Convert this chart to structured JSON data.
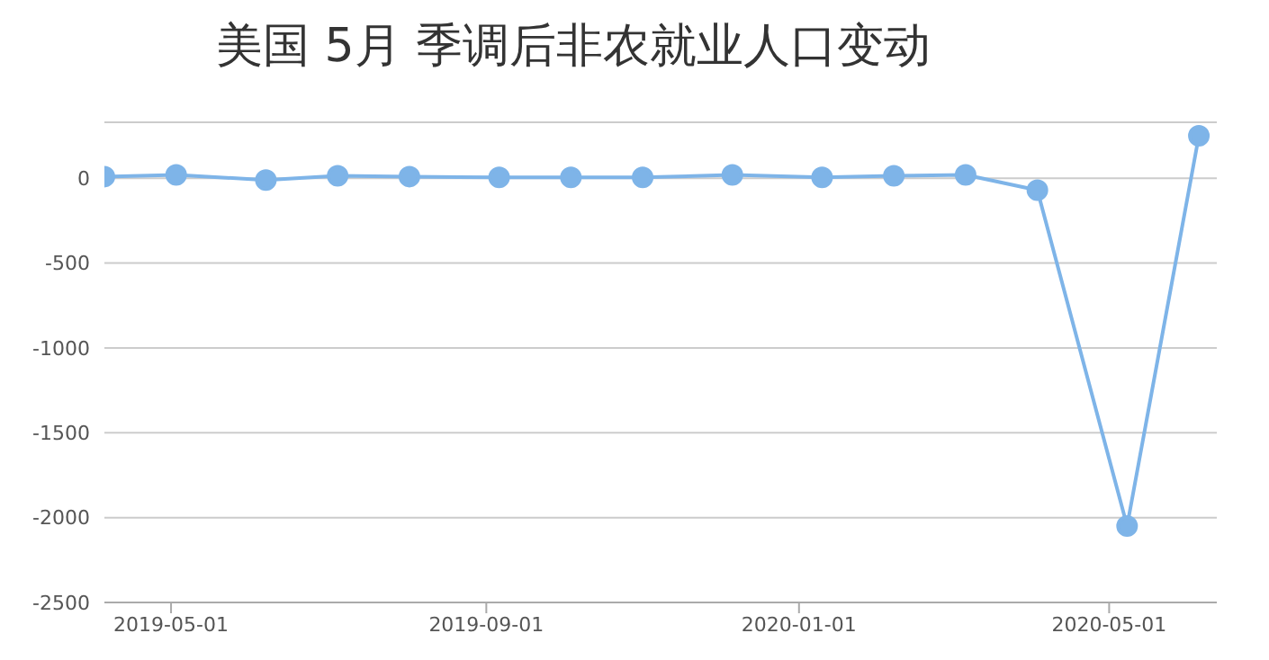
{
  "chart_data": {
    "type": "line",
    "title": "美国 5月 季调后非农就业人口变动",
    "x": [
      "2019-04-05",
      "2019-05-03",
      "2019-06-07",
      "2019-07-05",
      "2019-08-02",
      "2019-09-06",
      "2019-10-04",
      "2019-11-01",
      "2019-12-06",
      "2020-01-10",
      "2020-02-07",
      "2020-03-06",
      "2020-04-03",
      "2020-05-08",
      "2020-06-05"
    ],
    "series": [
      {
        "color": "#7eb4e8",
        "values": [
          10,
          20,
          -10,
          15,
          10,
          5,
          5,
          5,
          20,
          5,
          15,
          20,
          -70,
          -2050,
          250
        ]
      }
    ],
    "xlim": [
      "2019-04-05",
      "2020-06-12"
    ],
    "xticks": [
      {
        "value": "2019-05-01",
        "label": "2019-05-01"
      },
      {
        "value": "2019-09-01",
        "label": "2019-09-01"
      },
      {
        "value": "2020-01-01",
        "label": "2020-01-01"
      },
      {
        "value": "2020-05-01",
        "label": "2020-05-01"
      }
    ],
    "ylim": [
      -2500,
      330
    ],
    "yticks": [
      -2500,
      -2000,
      -1500,
      -1000,
      -500,
      0
    ],
    "grid": "y",
    "marker": "circle",
    "line_style": "solid",
    "legend": false
  }
}
